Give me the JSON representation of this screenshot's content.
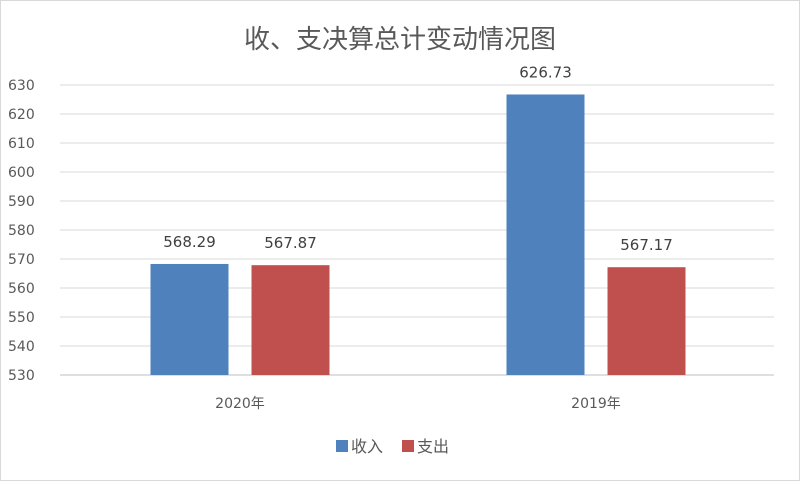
{
  "chart_data": {
    "type": "bar",
    "title": "收、支决算总计变动情况图",
    "categories": [
      "2020年",
      "2019年"
    ],
    "series": [
      {
        "name": "收入",
        "values": [
          568.29,
          626.73
        ],
        "color": "#4f81bd"
      },
      {
        "name": "支出",
        "values": [
          567.87,
          567.17
        ],
        "color": "#c0504d"
      }
    ],
    "data_labels": [
      [
        "568.29",
        "626.73"
      ],
      [
        "567.87",
        "567.17"
      ]
    ],
    "ylim": [
      530,
      630
    ],
    "yticks": [
      530,
      540,
      550,
      560,
      570,
      580,
      590,
      600,
      610,
      620,
      630
    ],
    "xlabel": "",
    "ylabel": "",
    "grid": true,
    "legend": "bottom"
  }
}
